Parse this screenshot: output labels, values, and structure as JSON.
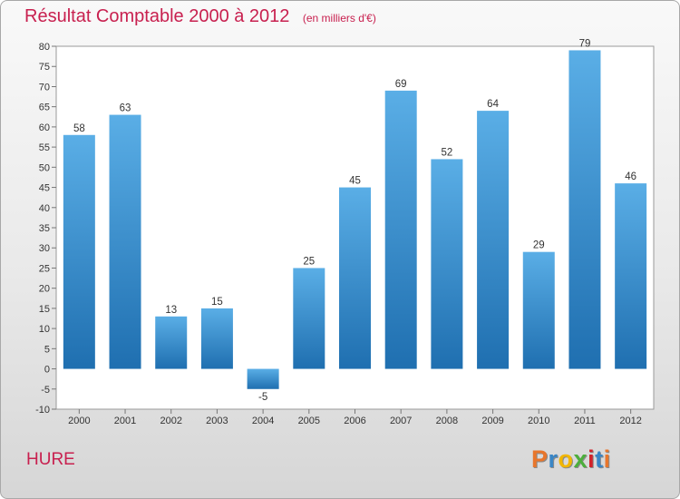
{
  "header": {
    "title": "Résultat Comptable 2000 à 2012",
    "subtitle": "(en milliers d'€)"
  },
  "footer": {
    "commune": "HURE",
    "brand_letters": [
      "P",
      "r",
      "o",
      "x",
      "i",
      "t",
      "i"
    ],
    "brand_colors": [
      "#e8762c",
      "#3a86c6",
      "#f2b600",
      "#4caf3c",
      "#d2222a",
      "#3a86c6",
      "#e8762c"
    ]
  },
  "colors": {
    "bar_top": "#5aaee6",
    "bar_bottom": "#1f6fb0",
    "title": "#c8204f"
  },
  "chart_data": {
    "type": "bar",
    "title": "Résultat Comptable 2000 à 2012",
    "subtitle": "(en milliers d'€)",
    "categories": [
      "2000",
      "2001",
      "2002",
      "2003",
      "2004",
      "2005",
      "2006",
      "2007",
      "2008",
      "2009",
      "2010",
      "2011",
      "2012"
    ],
    "values": [
      58,
      63,
      13,
      15,
      -5,
      25,
      45,
      69,
      52,
      64,
      29,
      79,
      46
    ],
    "value_labels": [
      "58",
      "63",
      "13",
      "15",
      "-5",
      "25",
      "45",
      "69",
      "52",
      "64",
      "29",
      "79",
      "46"
    ],
    "yticks": [
      "-10",
      "-5",
      "0",
      "5",
      "10",
      "15",
      "20",
      "25",
      "30",
      "35",
      "40",
      "45",
      "50",
      "55",
      "60",
      "65",
      "70",
      "75",
      "80"
    ],
    "ylim": [
      -10,
      80
    ],
    "xlabel": "",
    "ylabel": "",
    "grid": false
  }
}
